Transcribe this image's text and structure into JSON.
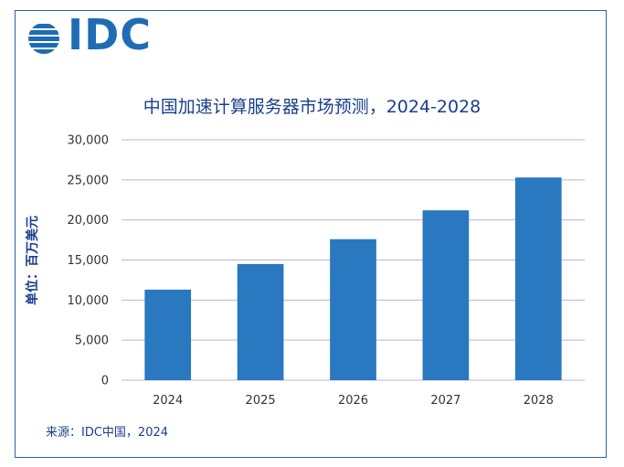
{
  "logo": {
    "text": "IDC",
    "color": "#1f6cb4"
  },
  "source": "来源：IDC中国，2024",
  "chart_data": {
    "type": "bar",
    "title": "中国加速计算服务器市场预测，2024-2028",
    "ylabel": "单位：百万美元",
    "xlabel": "",
    "categories": [
      "2024",
      "2025",
      "2026",
      "2027",
      "2028"
    ],
    "values": [
      11300,
      14500,
      17600,
      21200,
      25300
    ],
    "ylim": [
      0,
      30000
    ],
    "yticks": [
      0,
      5000,
      10000,
      15000,
      20000,
      25000,
      30000
    ],
    "ytick_labels": [
      "0",
      "5,000",
      "10,000",
      "15,000",
      "20,000",
      "25,000",
      "30,000"
    ],
    "grid": true,
    "bar_color": "#2a78bf",
    "grid_color": "#b9b4e0"
  }
}
